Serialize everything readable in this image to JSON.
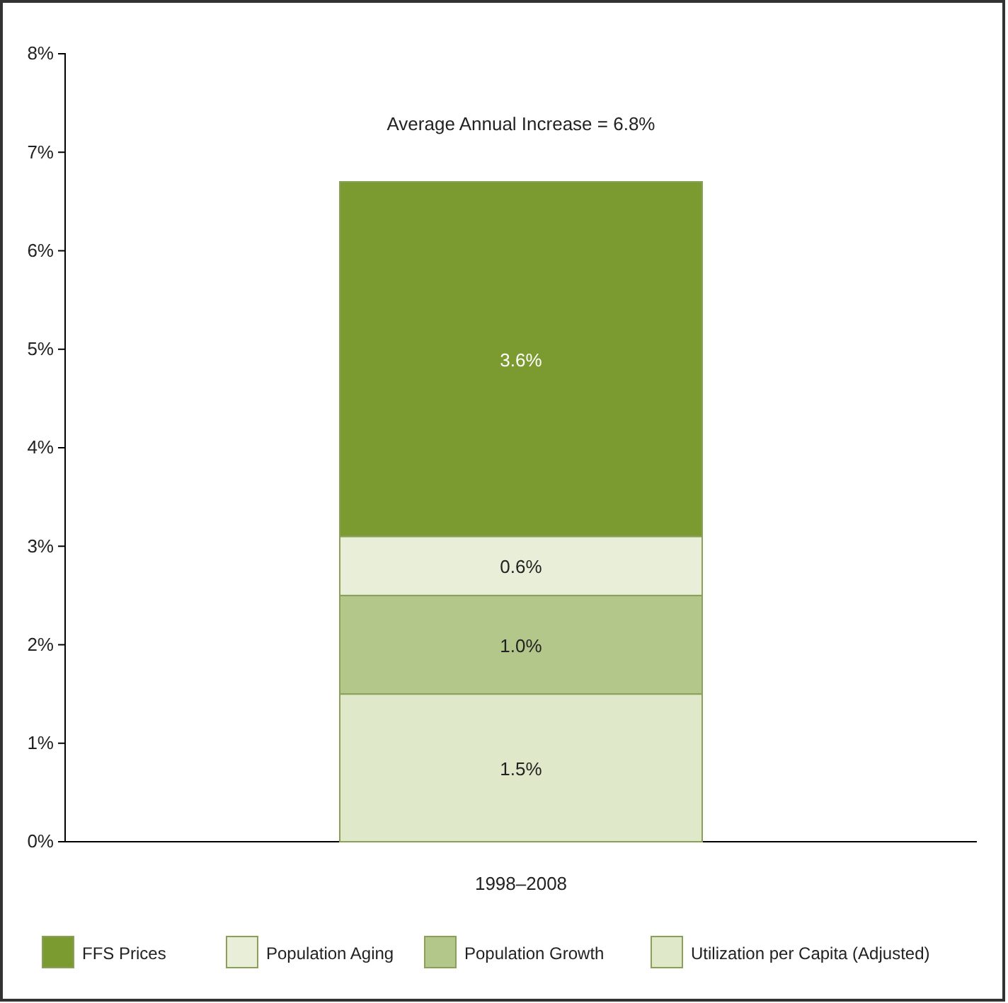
{
  "chart_data": {
    "type": "bar",
    "stacked": true,
    "categories": [
      "1998–2008"
    ],
    "series": [
      {
        "name": "Utilization per Capita (Adjusted)",
        "color": "#dfe8c8",
        "values": [
          1.5
        ]
      },
      {
        "name": "Population Growth",
        "color": "#b4c78a",
        "values": [
          1.0
        ]
      },
      {
        "name": "Population Aging",
        "color": "#e8eed8",
        "values": [
          0.6
        ]
      },
      {
        "name": "FFS Prices",
        "color": "#7b9a2f",
        "values": [
          3.6
        ]
      }
    ],
    "ylim": [
      0,
      8
    ],
    "yticks": [
      {
        "value": 0,
        "label": "0%"
      },
      {
        "value": 1,
        "label": "1%"
      },
      {
        "value": 2,
        "label": "2%"
      },
      {
        "value": 3,
        "label": "3%"
      },
      {
        "value": 4,
        "label": "4%"
      },
      {
        "value": 5,
        "label": "5%"
      },
      {
        "value": 6,
        "label": "6%"
      },
      {
        "value": 7,
        "label": "7%"
      },
      {
        "value": 8,
        "label": "8%"
      }
    ],
    "value_labels": [
      "1.5%",
      "1.0%",
      "0.6%",
      "3.6%"
    ],
    "annotations": [
      "Average Annual Increase = 6.8%"
    ],
    "legend": "bottom",
    "grid": false
  }
}
